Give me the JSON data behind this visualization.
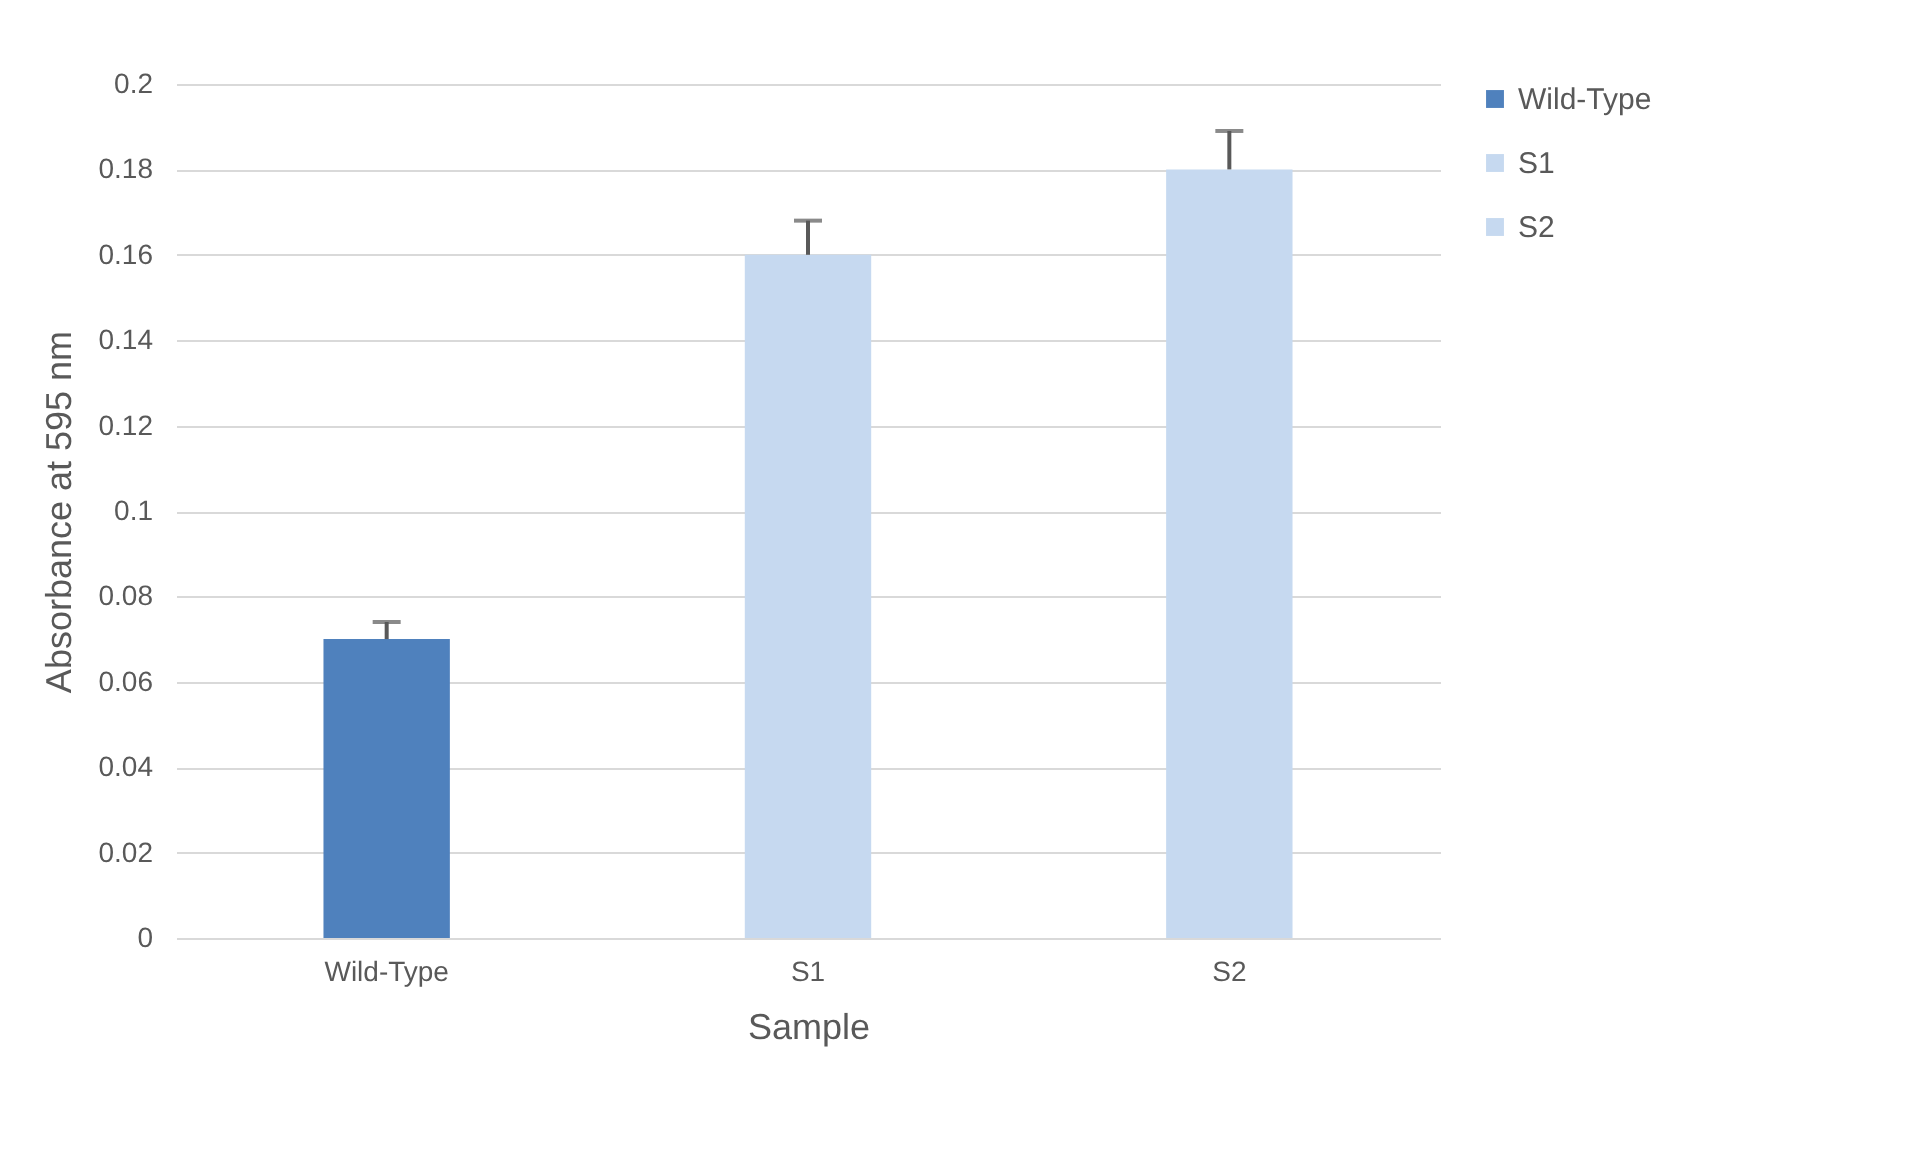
{
  "chart_data": {
    "type": "bar",
    "xlabel": "Sample",
    "ylabel": "Absorbance at 595 nm",
    "categories": [
      "Wild-Type",
      "S1",
      "S2"
    ],
    "series": [
      {
        "name": "Wild-Type",
        "color": "#4f81bd",
        "values": [
          0.07,
          null,
          null
        ],
        "errors": [
          [
            0.07,
            0.074
          ],
          null,
          null
        ]
      },
      {
        "name": "S1",
        "color": "#c6d9f0",
        "values": [
          null,
          0.16,
          null
        ],
        "errors": [
          null,
          [
            0.16,
            0.168
          ],
          null
        ]
      },
      {
        "name": "S2",
        "color": "#c6d9f0",
        "values": [
          null,
          null,
          0.18
        ],
        "errors": [
          null,
          null,
          [
            0.18,
            0.189
          ]
        ]
      }
    ],
    "ylim": [
      0,
      0.2
    ],
    "yticks": [
      0,
      0.02,
      0.04,
      0.06,
      0.08,
      0.1,
      0.12,
      0.14,
      0.16,
      0.18,
      0.2
    ],
    "grid": "y",
    "legend": "right"
  }
}
